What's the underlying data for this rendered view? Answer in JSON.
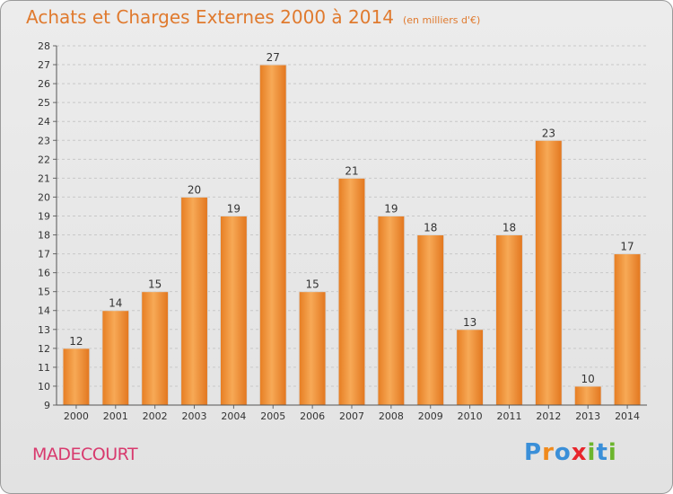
{
  "title": "Achats et Charges Externes 2000 à 2014",
  "unit_note": "(en milliers d'€)",
  "commune": "MADECOURT",
  "logo": {
    "text": "Proxiti",
    "colors": [
      "#3a8fd8",
      "#f08a1c",
      "#3a8fd8",
      "#e8262c",
      "#6cb52d",
      "#3a8fd8",
      "#6cb52d"
    ]
  },
  "colors": {
    "bar": "#ee8a30",
    "bar_light": "#f8ae58",
    "title": "#e07a2e",
    "commune": "#d83a6e",
    "grid": "#c8c8c8"
  },
  "chart_data": {
    "type": "bar",
    "categories": [
      "2000",
      "2001",
      "2002",
      "2003",
      "2004",
      "2005",
      "2006",
      "2007",
      "2008",
      "2009",
      "2010",
      "2011",
      "2012",
      "2013",
      "2014"
    ],
    "values": [
      12,
      14,
      15,
      20,
      19,
      27,
      15,
      21,
      19,
      18,
      13,
      18,
      23,
      10,
      17
    ],
    "ylim": [
      9,
      28
    ],
    "yticks": [
      9,
      10,
      11,
      12,
      13,
      14,
      15,
      16,
      17,
      18,
      19,
      20,
      21,
      22,
      23,
      24,
      25,
      26,
      27,
      28
    ],
    "grid": "horizontal dashed",
    "data_labels": true
  }
}
